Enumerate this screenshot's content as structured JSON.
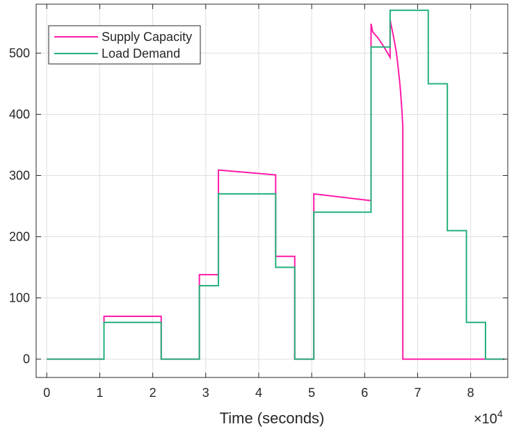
{
  "chart_data": {
    "type": "line",
    "title": "",
    "xlabel": "Time (seconds)",
    "ylabel": "",
    "x_exponent_label": "×10",
    "x_exponent": "4",
    "x_scale_factor": 10000,
    "xlim": [
      -2000,
      87000
    ],
    "ylim": [
      -30,
      580
    ],
    "x_ticks": [
      0,
      10000,
      20000,
      30000,
      40000,
      50000,
      60000,
      70000,
      80000
    ],
    "x_tick_labels": [
      "0",
      "1",
      "2",
      "3",
      "4",
      "5",
      "6",
      "7",
      "8"
    ],
    "y_ticks": [
      0,
      100,
      200,
      300,
      400,
      500
    ],
    "y_tick_labels": [
      "0",
      "100",
      "200",
      "300",
      "400",
      "500"
    ],
    "grid": true,
    "legend_position": "top-left",
    "series": [
      {
        "name": "Supply Capacity",
        "color": "#ff1aa8",
        "x": [
          0,
          10800,
          10800,
          21600,
          21600,
          28800,
          28800,
          32400,
          32400,
          43200,
          43200,
          46800,
          46800,
          50400,
          50400,
          61200,
          61200,
          61500,
          62500,
          63500,
          64000,
          64800,
          64800,
          64900,
          65200,
          65600,
          66000,
          66400,
          66700,
          67000,
          67200,
          67200,
          86400
        ],
        "y": [
          0,
          0,
          70,
          70,
          0,
          0,
          138,
          138,
          309,
          301,
          168,
          168,
          0,
          0,
          270,
          259,
          548,
          535,
          525,
          512,
          505,
          493,
          555,
          550,
          537,
          520,
          500,
          470,
          445,
          410,
          380,
          0,
          0
        ]
      },
      {
        "name": "Load Demand",
        "color": "#24b07a",
        "x": [
          0,
          10800,
          10800,
          21600,
          21600,
          28800,
          28800,
          32400,
          32400,
          43200,
          43200,
          46800,
          46800,
          50400,
          50400,
          61200,
          61200,
          64800,
          64800,
          72000,
          72000,
          75600,
          75600,
          79200,
          79200,
          82800,
          82800,
          86400
        ],
        "y": [
          0,
          0,
          60,
          60,
          0,
          0,
          120,
          120,
          270,
          270,
          150,
          150,
          0,
          0,
          240,
          240,
          510,
          510,
          570,
          570,
          450,
          450,
          210,
          210,
          60,
          60,
          0,
          0
        ]
      }
    ]
  }
}
